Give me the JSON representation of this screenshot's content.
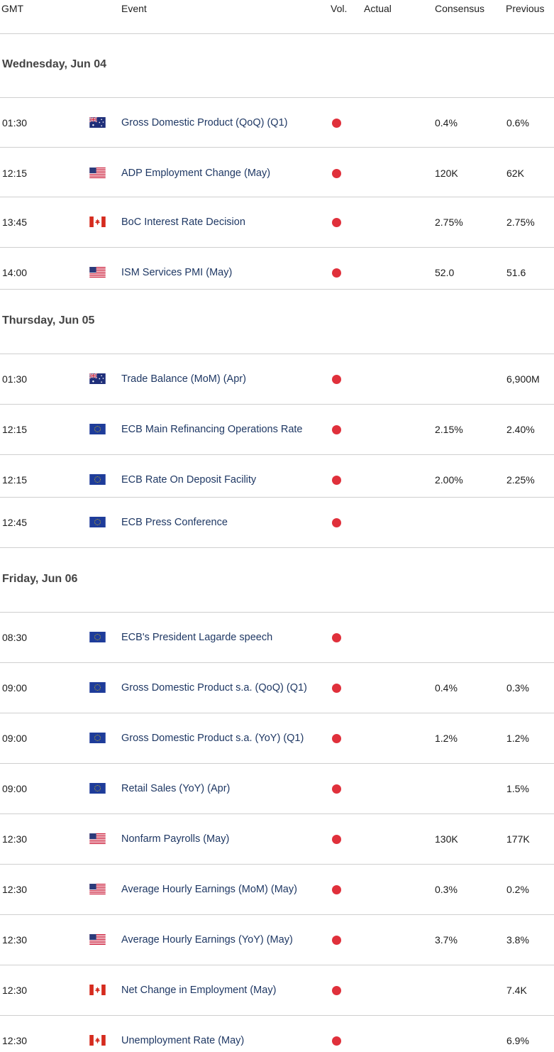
{
  "columns": {
    "gmt": "GMT",
    "event": "Event",
    "vol": "Vol.",
    "actual": "Actual",
    "consensus": "Consensus",
    "previous": "Previous"
  },
  "colors": {
    "volatility_dot": "#e0303b",
    "event_text": "#1f3864",
    "divider": "#cfcfcf"
  },
  "days": [
    {
      "label": "Wednesday, Jun 04",
      "events": [
        {
          "time": "01:30",
          "flag": "flag-au-icon",
          "event": "Gross Domestic Product (QoQ) (Q1)",
          "actual": "",
          "consensus": "0.4%",
          "previous": "0.6%"
        },
        {
          "time": "12:15",
          "flag": "flag-us-icon",
          "event": "ADP Employment Change (May)",
          "actual": "",
          "consensus": "120K",
          "previous": "62K"
        },
        {
          "time": "13:45",
          "flag": "flag-ca-icon",
          "event": "BoC Interest Rate Decision",
          "actual": "",
          "consensus": "2.75%",
          "previous": "2.75%"
        },
        {
          "time": "14:00",
          "flag": "flag-us-icon",
          "event": "ISM Services PMI (May)",
          "actual": "",
          "consensus": "52.0",
          "previous": "51.6"
        }
      ]
    },
    {
      "label": "Thursday, Jun 05",
      "events": [
        {
          "time": "01:30",
          "flag": "flag-au-icon",
          "event": "Trade Balance (MoM) (Apr)",
          "actual": "",
          "consensus": "",
          "previous": "6,900M"
        },
        {
          "time": "12:15",
          "flag": "flag-eu-icon",
          "event": "ECB Main Refinancing Operations Rate",
          "actual": "",
          "consensus": "2.15%",
          "previous": "2.40%"
        },
        {
          "time": "12:15",
          "flag": "flag-eu-icon",
          "event": "ECB Rate On Deposit Facility",
          "actual": "",
          "consensus": "2.00%",
          "previous": "2.25%"
        },
        {
          "time": "12:45",
          "flag": "flag-eu-icon",
          "event": "ECB Press Conference",
          "actual": "",
          "consensus": "",
          "previous": ""
        }
      ]
    },
    {
      "label": "Friday, Jun 06",
      "events": [
        {
          "time": "08:30",
          "flag": "flag-eu-icon",
          "event": "ECB's President Lagarde speech",
          "actual": "",
          "consensus": "",
          "previous": ""
        },
        {
          "time": "09:00",
          "flag": "flag-eu-icon",
          "event": "Gross Domestic Product s.a. (QoQ) (Q1)",
          "actual": "",
          "consensus": "0.4%",
          "previous": "0.3%"
        },
        {
          "time": "09:00",
          "flag": "flag-eu-icon",
          "event": "Gross Domestic Product s.a. (YoY) (Q1)",
          "actual": "",
          "consensus": "1.2%",
          "previous": "1.2%"
        },
        {
          "time": "09:00",
          "flag": "flag-eu-icon",
          "event": "Retail Sales (YoY) (Apr)",
          "actual": "",
          "consensus": "",
          "previous": "1.5%"
        },
        {
          "time": "12:30",
          "flag": "flag-us-icon",
          "event": "Nonfarm Payrolls (May)",
          "actual": "",
          "consensus": "130K",
          "previous": "177K"
        },
        {
          "time": "12:30",
          "flag": "flag-us-icon",
          "event": "Average Hourly Earnings (MoM) (May)",
          "actual": "",
          "consensus": "0.3%",
          "previous": "0.2%"
        },
        {
          "time": "12:30",
          "flag": "flag-us-icon",
          "event": "Average Hourly Earnings (YoY) (May)",
          "actual": "",
          "consensus": "3.7%",
          "previous": "3.8%"
        },
        {
          "time": "12:30",
          "flag": "flag-ca-icon",
          "event": "Net Change in Employment (May)",
          "actual": "",
          "consensus": "",
          "previous": "7.4K"
        },
        {
          "time": "12:30",
          "flag": "flag-ca-icon",
          "event": "Unemployment Rate (May)",
          "actual": "",
          "consensus": "",
          "previous": "6.9%"
        }
      ]
    }
  ]
}
